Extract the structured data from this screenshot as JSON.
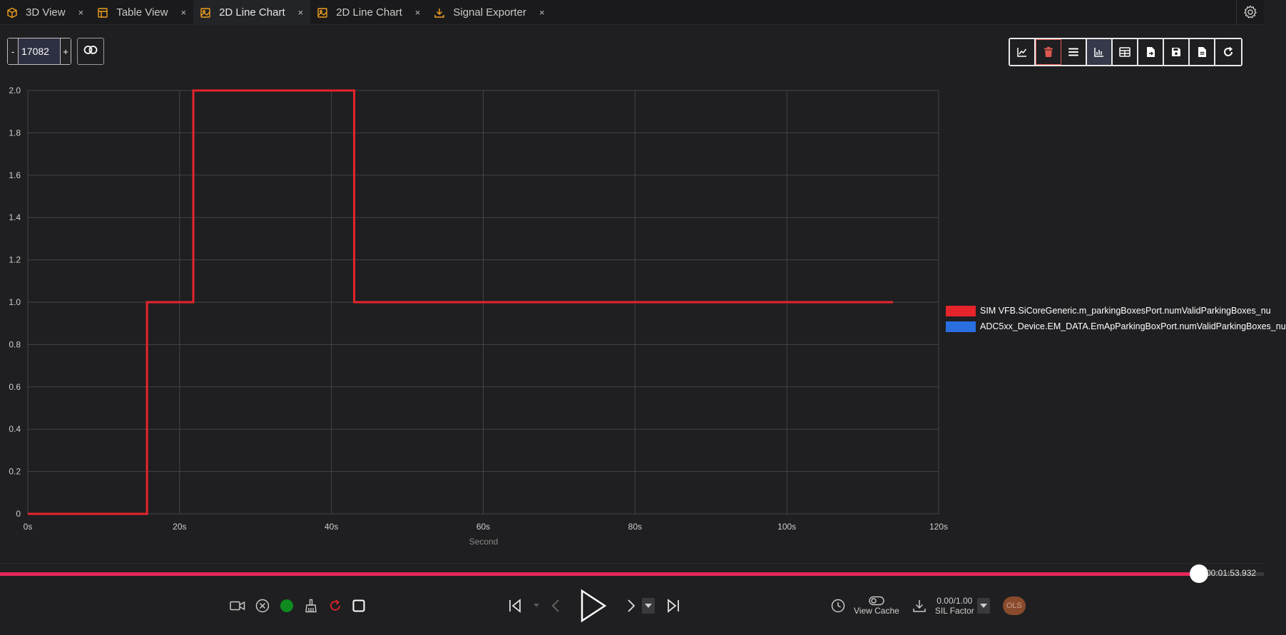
{
  "tabs": [
    {
      "label": "3D View",
      "icon": "cube-icon",
      "active": false
    },
    {
      "label": "Table View",
      "icon": "table-icon",
      "active": false
    },
    {
      "label": "2D Line Chart",
      "icon": "image-icon",
      "active": true
    },
    {
      "label": "2D Line Chart",
      "icon": "image-icon",
      "active": false
    },
    {
      "label": "Signal Exporter",
      "icon": "download-icon",
      "active": false
    }
  ],
  "tab_close_glyph": "×",
  "frame_stepper": {
    "minus": "-",
    "value": "17082",
    "plus": "+"
  },
  "toolbar": {
    "icons": [
      "line-chart-icon",
      "trash-icon",
      "list-icon",
      "bar-chart-icon",
      "table-icon",
      "file-export-icon",
      "save-icon",
      "document-icon",
      "refresh-icon"
    ]
  },
  "colors": {
    "accent_tab": "#f0a020",
    "series_red": "#e5242c",
    "series_blue": "#2a6fe0",
    "progress": "#e8285a",
    "delete": "#e0584f"
  },
  "chart_data": {
    "type": "line",
    "xlabel": "Second",
    "ylabel": "",
    "xlim": [
      0,
      120
    ],
    "ylim": [
      0,
      2.0
    ],
    "x_ticks": [
      "0s",
      "20s",
      "40s",
      "60s",
      "80s",
      "100s",
      "120s"
    ],
    "y_ticks": [
      "0",
      "0.2",
      "0.4",
      "0.6",
      "0.8",
      "1.0",
      "1.2",
      "1.4",
      "1.6",
      "1.8",
      "2.0"
    ],
    "grid": true,
    "legend_position": "right",
    "series": [
      {
        "name": "SIM VFB.SiCoreGeneric.m_parkingBoxesPort.numValidParkingBoxes_nu",
        "color": "#e5242c",
        "step": true,
        "points": [
          [
            0,
            0
          ],
          [
            15.7,
            0
          ],
          [
            15.7,
            1
          ],
          [
            21.8,
            1
          ],
          [
            21.8,
            2
          ],
          [
            43.0,
            2
          ],
          [
            43.0,
            1
          ],
          [
            114,
            1
          ]
        ]
      },
      {
        "name": "ADC5xx_Device.EM_DATA.EmApParkingBoxPort.numValidParkingBoxes_nu",
        "color": "#2a6fe0",
        "step": true,
        "points": [
          [
            0,
            0
          ],
          [
            0.8,
            0
          ]
        ]
      }
    ]
  },
  "playback": {
    "progress_fraction": 0.9489,
    "time": "00:01:53.932",
    "view_cache_label": "View Cache",
    "sil_value": "0.00/1.00",
    "sil_label": "SIL Factor",
    "ols_label": "OLS"
  }
}
